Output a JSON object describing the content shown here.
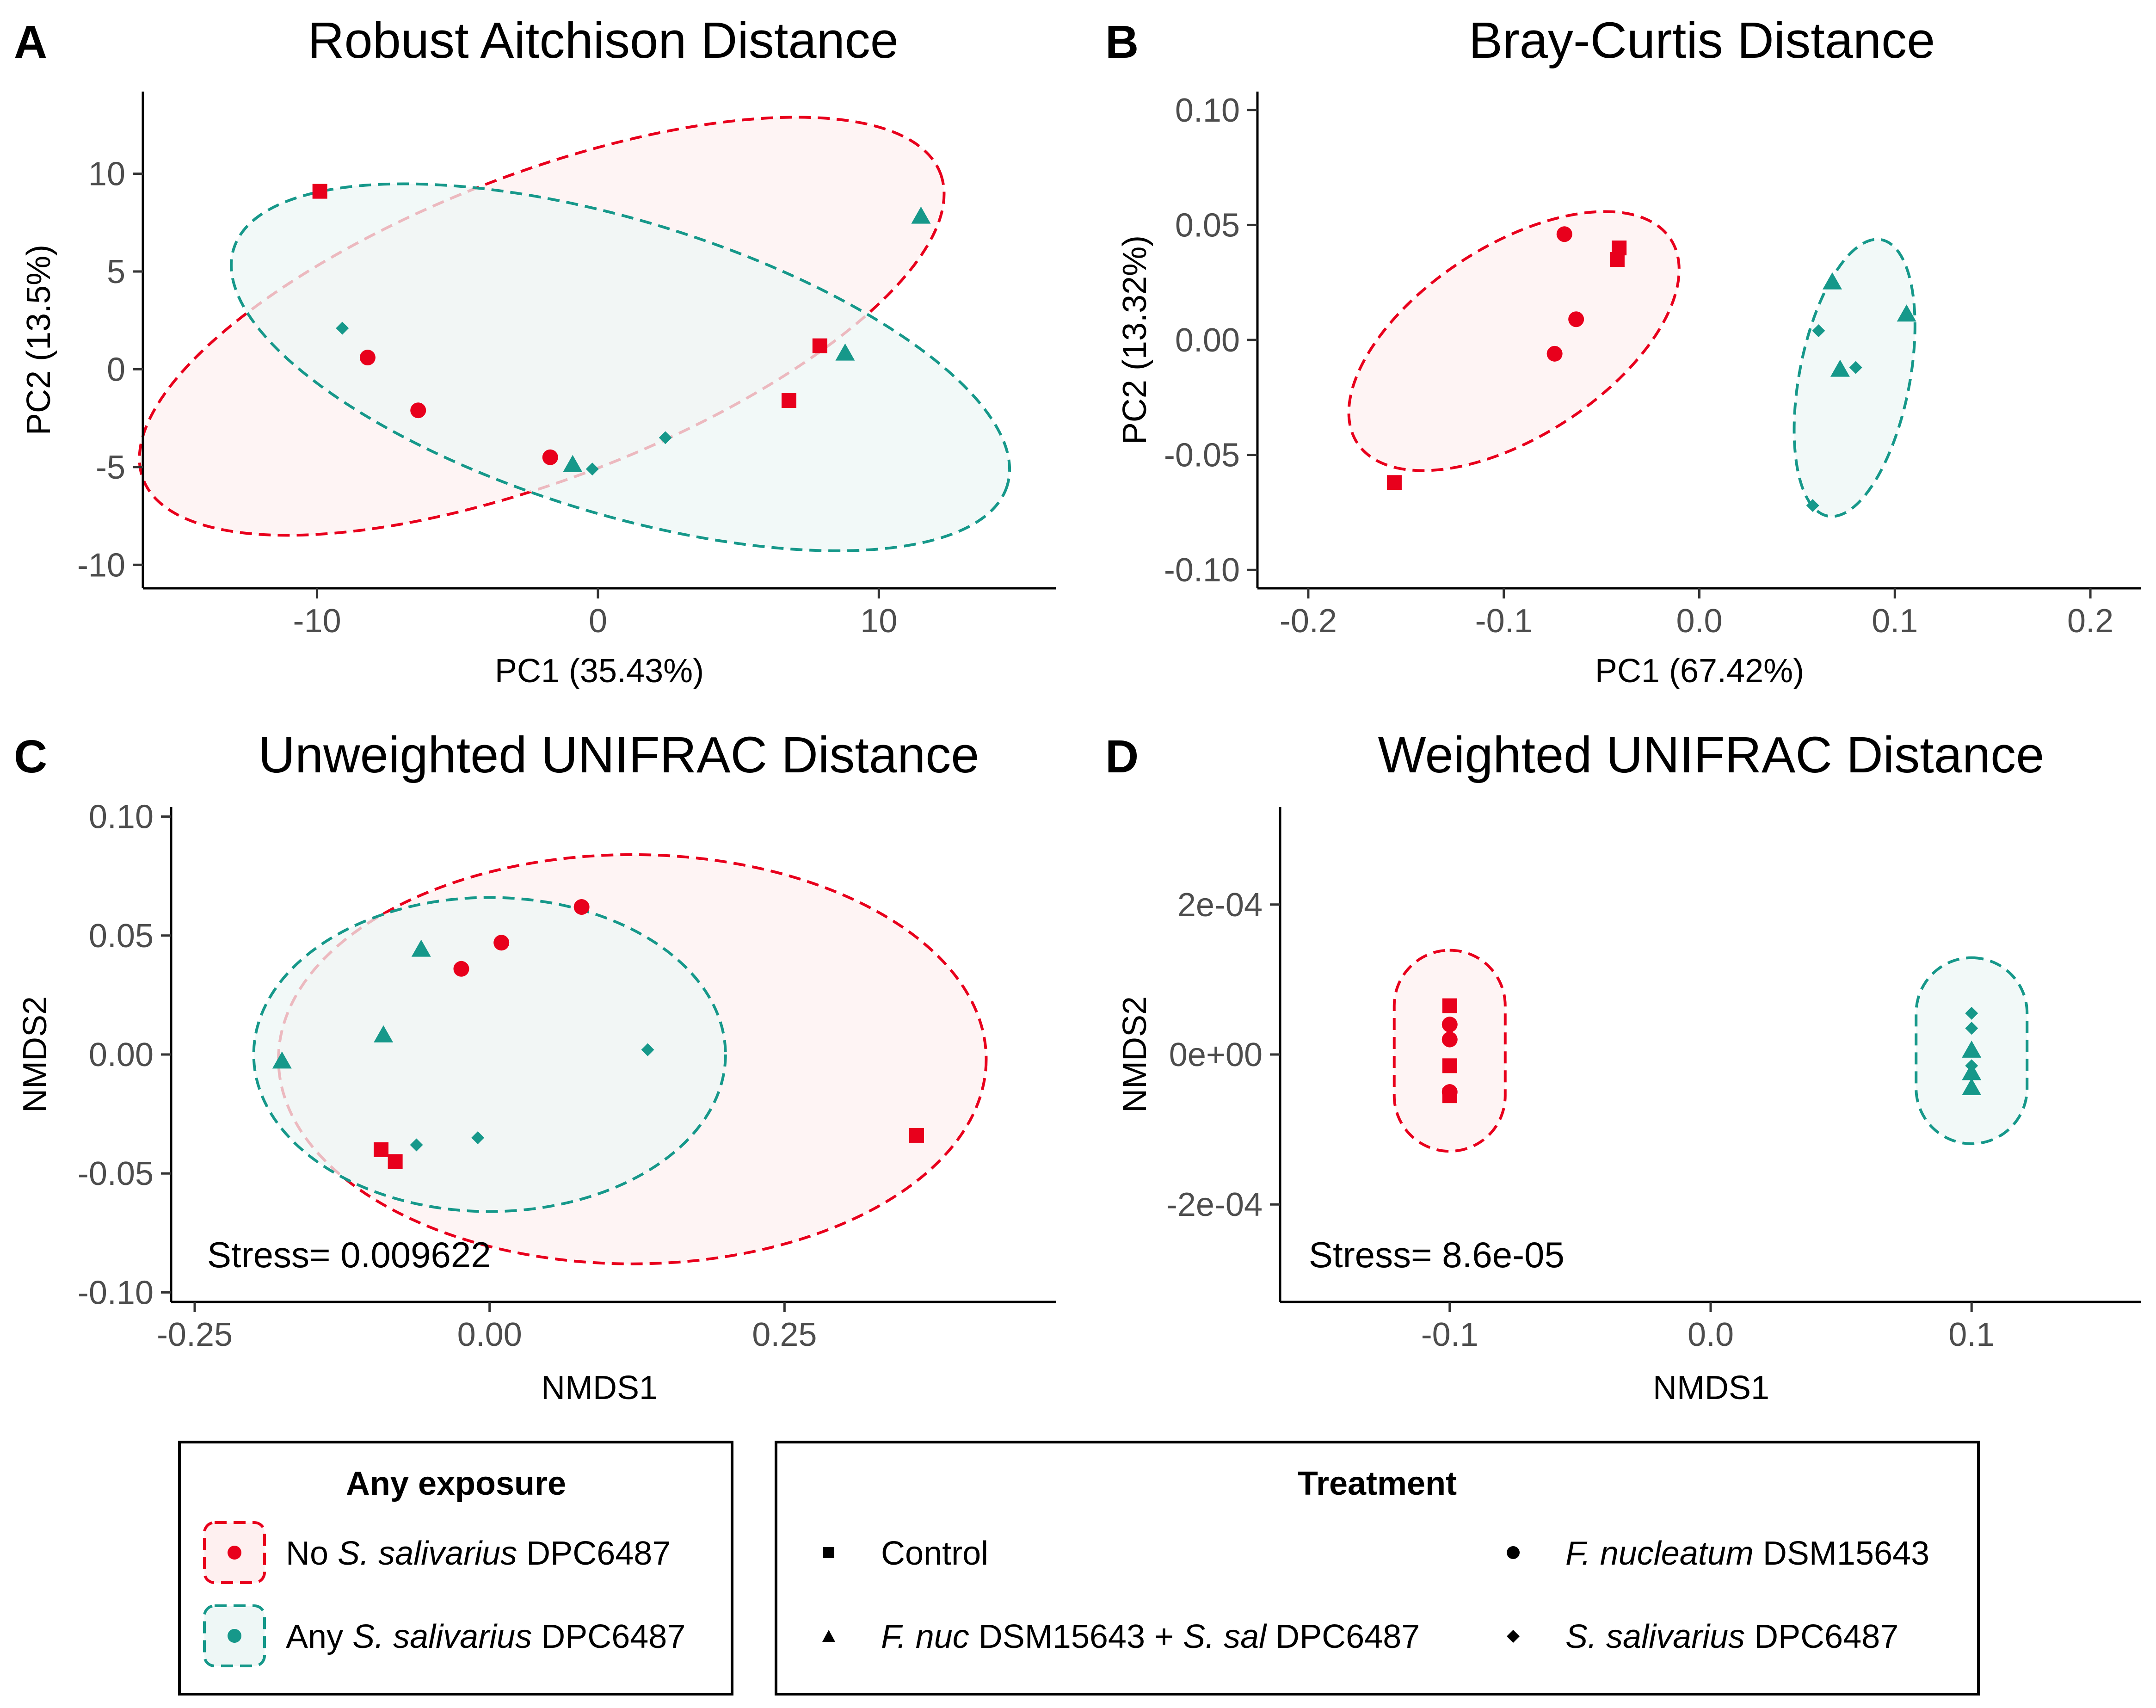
{
  "colors": {
    "no_ssal": "#E8001C",
    "any_ssal": "#16988A",
    "no_ssal_fill": "#FEF0F0",
    "any_ssal_fill": "#EEF7F6"
  },
  "chart_data": [
    {
      "type": "scatter",
      "panel": "A",
      "title": "Robust Aitchison Distance",
      "xlabel": "PC1 (35.43%)",
      "ylabel": "PC2 (13.5%)",
      "xlim": [
        -16.2,
        16.3
      ],
      "ylim": [
        -11.2,
        14.2
      ],
      "xticks": [
        -10,
        0,
        10
      ],
      "xtick_labels": [
        "-10",
        "0",
        "10"
      ],
      "yticks": [
        -10,
        -5,
        0,
        5,
        10
      ],
      "ytick_labels": [
        "-10",
        "-5",
        "0",
        "5",
        "10"
      ],
      "points": [
        {
          "x": -9.9,
          "y": 9.1,
          "treatment": "control",
          "group": "no"
        },
        {
          "x": 7.9,
          "y": 1.2,
          "treatment": "control",
          "group": "no"
        },
        {
          "x": 6.8,
          "y": -1.6,
          "treatment": "control",
          "group": "no"
        },
        {
          "x": -8.2,
          "y": 0.6,
          "treatment": "fnuc",
          "group": "no"
        },
        {
          "x": -6.4,
          "y": -2.1,
          "treatment": "fnuc",
          "group": "no"
        },
        {
          "x": -1.7,
          "y": -4.5,
          "treatment": "fnuc",
          "group": "no"
        },
        {
          "x": 11.5,
          "y": 7.8,
          "treatment": "combo",
          "group": "any"
        },
        {
          "x": 8.8,
          "y": 0.8,
          "treatment": "combo",
          "group": "any"
        },
        {
          "x": -0.9,
          "y": -4.9,
          "treatment": "combo",
          "group": "any"
        },
        {
          "x": -9.1,
          "y": 2.1,
          "treatment": "ssal",
          "group": "any"
        },
        {
          "x": 2.4,
          "y": -3.5,
          "treatment": "ssal",
          "group": "any"
        },
        {
          "x": -0.2,
          "y": -5.1,
          "treatment": "ssal",
          "group": "any"
        }
      ],
      "ellipses": [
        {
          "group": "no",
          "cx": -2.0,
          "cy": 2.2,
          "rx": 15.2,
          "ry": 7.8,
          "angle": 21
        },
        {
          "group": "any",
          "cx": 0.8,
          "cy": 0.1,
          "rx": 14.4,
          "ry": 7.5,
          "angle": -17
        }
      ]
    },
    {
      "type": "scatter",
      "panel": "B",
      "title": "Bray-Curtis Distance",
      "xlabel": "PC1 (67.42%)",
      "ylabel": "PC2 (13.32%)",
      "xlim": [
        -0.226,
        0.226
      ],
      "ylim": [
        -0.108,
        0.108
      ],
      "xticks": [
        -0.2,
        -0.1,
        0.0,
        0.1,
        0.2
      ],
      "xtick_labels": [
        "-0.2",
        "-0.1",
        "0.0",
        "0.1",
        "0.2"
      ],
      "yticks": [
        -0.1,
        -0.05,
        0.0,
        0.05,
        0.1
      ],
      "ytick_labels": [
        "-0.10",
        "-0.05",
        "0.00",
        "0.05",
        "0.10"
      ],
      "points": [
        {
          "x": -0.156,
          "y": -0.062,
          "treatment": "control",
          "group": "no"
        },
        {
          "x": -0.041,
          "y": 0.04,
          "treatment": "control",
          "group": "no"
        },
        {
          "x": -0.042,
          "y": 0.035,
          "treatment": "control",
          "group": "no"
        },
        {
          "x": -0.069,
          "y": 0.046,
          "treatment": "fnuc",
          "group": "no"
        },
        {
          "x": -0.063,
          "y": 0.009,
          "treatment": "fnuc",
          "group": "no"
        },
        {
          "x": -0.074,
          "y": -0.006,
          "treatment": "fnuc",
          "group": "no"
        },
        {
          "x": 0.068,
          "y": 0.025,
          "treatment": "combo",
          "group": "any"
        },
        {
          "x": 0.106,
          "y": 0.011,
          "treatment": "combo",
          "group": "any"
        },
        {
          "x": 0.072,
          "y": -0.013,
          "treatment": "combo",
          "group": "any"
        },
        {
          "x": 0.061,
          "y": 0.004,
          "treatment": "ssal",
          "group": "any"
        },
        {
          "x": 0.08,
          "y": -0.012,
          "treatment": "ssal",
          "group": "any"
        },
        {
          "x": 0.058,
          "y": -0.072,
          "treatment": "ssal",
          "group": "any"
        }
      ],
      "ellipses": [
        {
          "group": "no",
          "cx": -0.0948,
          "cy": -0.0005,
          "a": 0.0956,
          "b": 0.0415,
          "rx": 110.0,
          "ry": 410.0,
          "angle": 33
        },
        {
          "group": "any",
          "cx": 0.0794,
          "cy": -0.0165,
          "a": 0.0282,
          "b": 0.0612,
          "rx": 110.0,
          "ry": 410.0,
          "angle": 11
        }
      ]
    },
    {
      "type": "scatter",
      "panel": "C",
      "title": "Unweighted UNIFRAC Distance",
      "xlabel": "NMDS1",
      "ylabel": "NMDS2",
      "annotation": "Stress= 0.009622",
      "xlim": [
        -0.27,
        0.48
      ],
      "ylim": [
        -0.104,
        0.104
      ],
      "xticks": [
        -0.25,
        0.0,
        0.25
      ],
      "xtick_labels": [
        "-0.25",
        "0.00",
        "0.25"
      ],
      "yticks": [
        -0.1,
        -0.05,
        0.0,
        0.05,
        0.1
      ],
      "ytick_labels": [
        "-0.10",
        "-0.05",
        "0.00",
        "0.05",
        "0.10"
      ],
      "points": [
        {
          "x": 0.362,
          "y": -0.034,
          "treatment": "control",
          "group": "no"
        },
        {
          "x": -0.092,
          "y": -0.04,
          "treatment": "control",
          "group": "no"
        },
        {
          "x": -0.08,
          "y": -0.045,
          "treatment": "control",
          "group": "no"
        },
        {
          "x": 0.078,
          "y": 0.062,
          "treatment": "fnuc",
          "group": "no"
        },
        {
          "x": 0.01,
          "y": 0.047,
          "treatment": "fnuc",
          "group": "no"
        },
        {
          "x": -0.024,
          "y": 0.036,
          "treatment": "fnuc",
          "group": "no"
        },
        {
          "x": -0.058,
          "y": 0.044,
          "treatment": "combo",
          "group": "any"
        },
        {
          "x": -0.09,
          "y": 0.008,
          "treatment": "combo",
          "group": "any"
        },
        {
          "x": -0.176,
          "y": -0.003,
          "treatment": "combo",
          "group": "any"
        },
        {
          "x": 0.134,
          "y": 0.002,
          "treatment": "ssal",
          "group": "any"
        },
        {
          "x": -0.01,
          "y": -0.035,
          "treatment": "ssal",
          "group": "any"
        },
        {
          "x": -0.062,
          "y": -0.038,
          "treatment": "ssal",
          "group": "any"
        }
      ],
      "ellipses": [
        {
          "group": "no",
          "cx": 0.121,
          "cy": -0.002,
          "rx": 0.3,
          "ry": 0.086,
          "angle": 0
        },
        {
          "group": "any",
          "cx": 0.0,
          "cy": 0.0,
          "rx": 0.2,
          "ry": 0.066,
          "angle": 0
        }
      ]
    },
    {
      "type": "scatter",
      "panel": "D",
      "title": "Weighted UNIFRAC Distance",
      "xlabel": "NMDS1",
      "ylabel": "NMDS2",
      "annotation": "Stress= 8.6e-05",
      "xlim": [
        -0.165,
        0.165
      ],
      "ylim": [
        -0.00033,
        0.00033
      ],
      "xticks": [
        -0.1,
        0.0,
        0.1
      ],
      "xtick_labels": [
        "-0.1",
        "0.0",
        "0.1"
      ],
      "yticks": [
        -0.0002,
        0.0,
        0.0002
      ],
      "ytick_labels": [
        "-2e-04",
        "0e+00",
        "2e-04"
      ],
      "points": [
        {
          "x": -0.1,
          "y": 6.5e-05,
          "treatment": "control",
          "group": "no"
        },
        {
          "x": -0.1,
          "y": -1.5e-05,
          "treatment": "control",
          "group": "no"
        },
        {
          "x": -0.1,
          "y": -5.5e-05,
          "treatment": "control",
          "group": "no"
        },
        {
          "x": -0.1,
          "y": 4e-05,
          "treatment": "fnuc",
          "group": "no"
        },
        {
          "x": -0.1,
          "y": 2e-05,
          "treatment": "fnuc",
          "group": "no"
        },
        {
          "x": -0.1,
          "y": -5e-05,
          "treatment": "fnuc",
          "group": "no"
        },
        {
          "x": 0.1,
          "y": 5e-06,
          "treatment": "combo",
          "group": "any"
        },
        {
          "x": 0.1,
          "y": -2.5e-05,
          "treatment": "combo",
          "group": "any"
        },
        {
          "x": 0.1,
          "y": -4.5e-05,
          "treatment": "combo",
          "group": "any"
        },
        {
          "x": 0.1,
          "y": 5.5e-05,
          "treatment": "ssal",
          "group": "any"
        },
        {
          "x": 0.1,
          "y": 3.5e-05,
          "treatment": "ssal",
          "group": "any"
        },
        {
          "x": 0.1,
          "y": -1.5e-05,
          "treatment": "ssal",
          "group": "any"
        }
      ],
      "ellipses": [
        {
          "group": "no",
          "cx": -0.1,
          "cy": 0.0,
          "capsule": true
        },
        {
          "group": "any",
          "cx": 0.1,
          "cy": 0.0,
          "capsule": true
        }
      ]
    }
  ],
  "legend_exposure": {
    "title": "Any exposure",
    "items": [
      {
        "group": "no",
        "pre": "No ",
        "italic": "S. salivarius",
        "post": " DPC6487"
      },
      {
        "group": "any",
        "pre": "Any ",
        "italic": "S. salivarius",
        "post": " DPC6487"
      }
    ]
  },
  "legend_treatment": {
    "title": "Treatment",
    "items": [
      {
        "shape": "square",
        "parts": [
          {
            "t": "Control",
            "i": false
          }
        ]
      },
      {
        "shape": "circle",
        "parts": [
          {
            "t": "F. nucleatum",
            "i": true
          },
          {
            "t": " DSM15643",
            "i": false
          }
        ]
      },
      {
        "shape": "triangle",
        "parts": [
          {
            "t": "F. nuc",
            "i": true
          },
          {
            "t": " DSM15643 + ",
            "i": false
          },
          {
            "t": "S. sal",
            "i": true
          },
          {
            "t": " DPC6487",
            "i": false
          }
        ]
      },
      {
        "shape": "diamond",
        "parts": [
          {
            "t": "S. salivarius",
            "i": true
          },
          {
            "t": " DPC6487",
            "i": false
          }
        ]
      }
    ]
  }
}
